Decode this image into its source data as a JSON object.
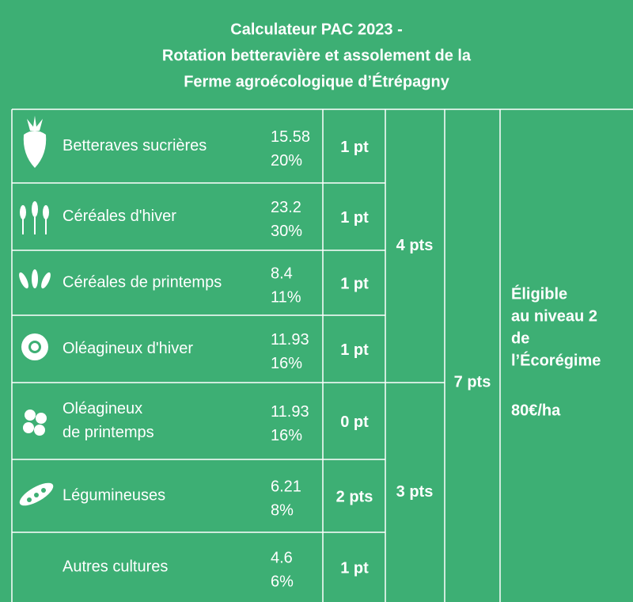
{
  "header": {
    "title": [
      "Calculateur PAC 2023 -",
      "Rotation betteravière et assolement de la",
      "Ferme agroécologique d’Étrépagny"
    ]
  },
  "table": {
    "rows": [
      {
        "name": [
          "Betteraves sucrières"
        ],
        "area": "15.58",
        "share": "20%",
        "points": "1 pt"
      },
      {
        "name": [
          "Céréales d'hiver"
        ],
        "area": "23.2",
        "share": "30%",
        "points": "1 pt"
      },
      {
        "name": [
          "Céréales de printemps"
        ],
        "area": "8.4",
        "share": "11%",
        "points": "1 pt"
      },
      {
        "name": [
          "Oléagineux d'hiver"
        ],
        "area": "11.93",
        "share": "16%",
        "points": "1 pt"
      },
      {
        "name": [
          "Oléagineux",
          "de printemps"
        ],
        "area": "11.93",
        "share": "16%",
        "points": "0 pt"
      },
      {
        "name": [
          "Légumineuses"
        ],
        "area": "6.21",
        "share": "8%",
        "points": "2 pts"
      },
      {
        "name": [
          "Autres cultures"
        ],
        "area": "4.6",
        "share": "6%",
        "points": "1 pt"
      }
    ],
    "groups": [
      "4 pts",
      "3 pts"
    ],
    "total": "7 pts",
    "eligibility": [
      "Éligible",
      "au niveau 2",
      "de",
      "l’Écorégime"
    ],
    "payment": "80€/ha"
  }
}
